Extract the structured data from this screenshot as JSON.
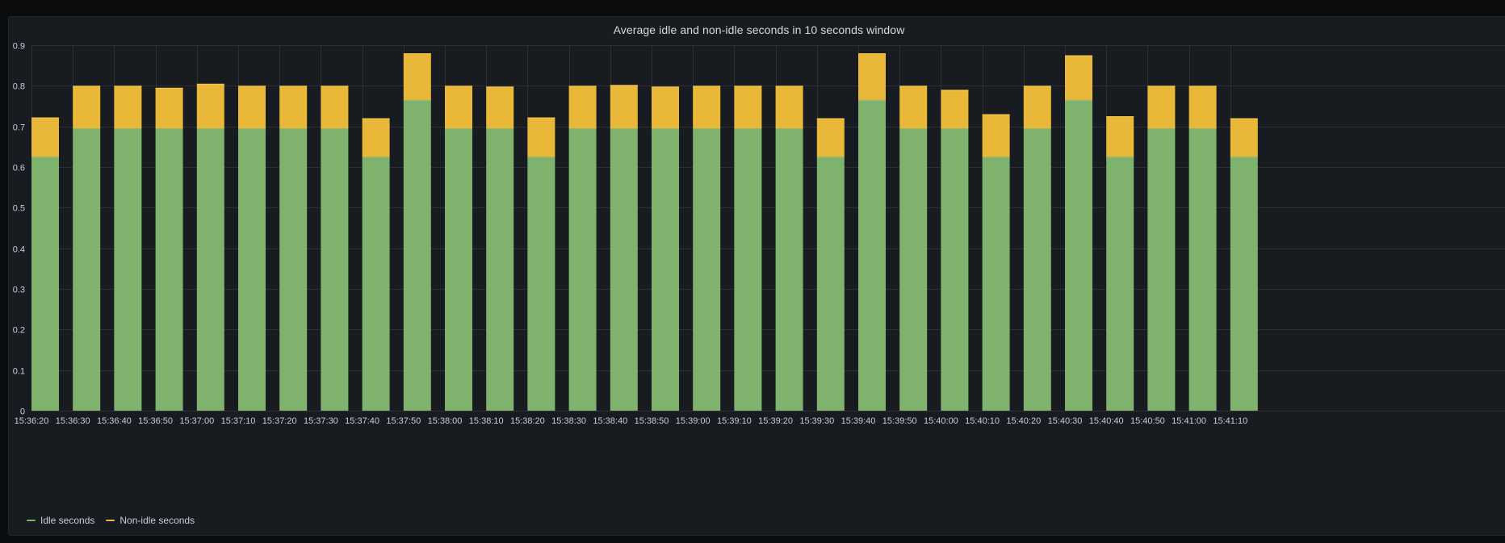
{
  "panel": {
    "title": "Average idle and non-idle seconds in 10 seconds window"
  },
  "legend": {
    "items": [
      {
        "label": "Idle seconds",
        "color": "#7eb26d"
      },
      {
        "label": "Non-idle seconds",
        "color": "#eab839"
      }
    ]
  },
  "chart_data": {
    "type": "bar",
    "stacked": true,
    "title": "Average idle and non-idle seconds in 10 seconds window",
    "xlabel": "",
    "ylabel": "",
    "ylim": [
      0,
      0.9
    ],
    "yticks": [
      "0",
      "0.1",
      "0.2",
      "0.3",
      "0.4",
      "0.5",
      "0.6",
      "0.7",
      "0.8",
      "0.9"
    ],
    "grid": true,
    "legend_position": "bottom-left",
    "categories": [
      "15:36:20",
      "15:36:30",
      "15:36:40",
      "15:36:50",
      "15:37:00",
      "15:37:10",
      "15:37:20",
      "15:37:30",
      "15:37:40",
      "15:37:50",
      "15:38:00",
      "15:38:10",
      "15:38:20",
      "15:38:30",
      "15:38:40",
      "15:38:50",
      "15:39:00",
      "15:39:10",
      "15:39:20",
      "15:39:30",
      "15:39:40",
      "15:39:50",
      "15:40:00",
      "15:40:10",
      "15:40:20",
      "15:40:30",
      "15:40:40",
      "15:40:50",
      "15:41:00",
      "15:41:10"
    ],
    "series": [
      {
        "name": "Idle seconds",
        "color": "#7eb26d",
        "values": [
          0.625,
          0.695,
          0.695,
          0.695,
          0.695,
          0.695,
          0.695,
          0.695,
          0.625,
          0.765,
          0.695,
          0.695,
          0.625,
          0.695,
          0.695,
          0.695,
          0.695,
          0.695,
          0.695,
          0.625,
          0.765,
          0.695,
          0.695,
          0.625,
          0.695,
          0.765,
          0.625,
          0.695,
          0.695,
          0.625
        ]
      },
      {
        "name": "Non-idle seconds",
        "color": "#eab839",
        "values": [
          0.097,
          0.105,
          0.105,
          0.1,
          0.11,
          0.105,
          0.105,
          0.105,
          0.095,
          0.115,
          0.105,
          0.103,
          0.097,
          0.105,
          0.107,
          0.103,
          0.105,
          0.105,
          0.105,
          0.095,
          0.115,
          0.105,
          0.095,
          0.105,
          0.105,
          0.11,
          0.1,
          0.105,
          0.105,
          0.095
        ]
      }
    ]
  }
}
